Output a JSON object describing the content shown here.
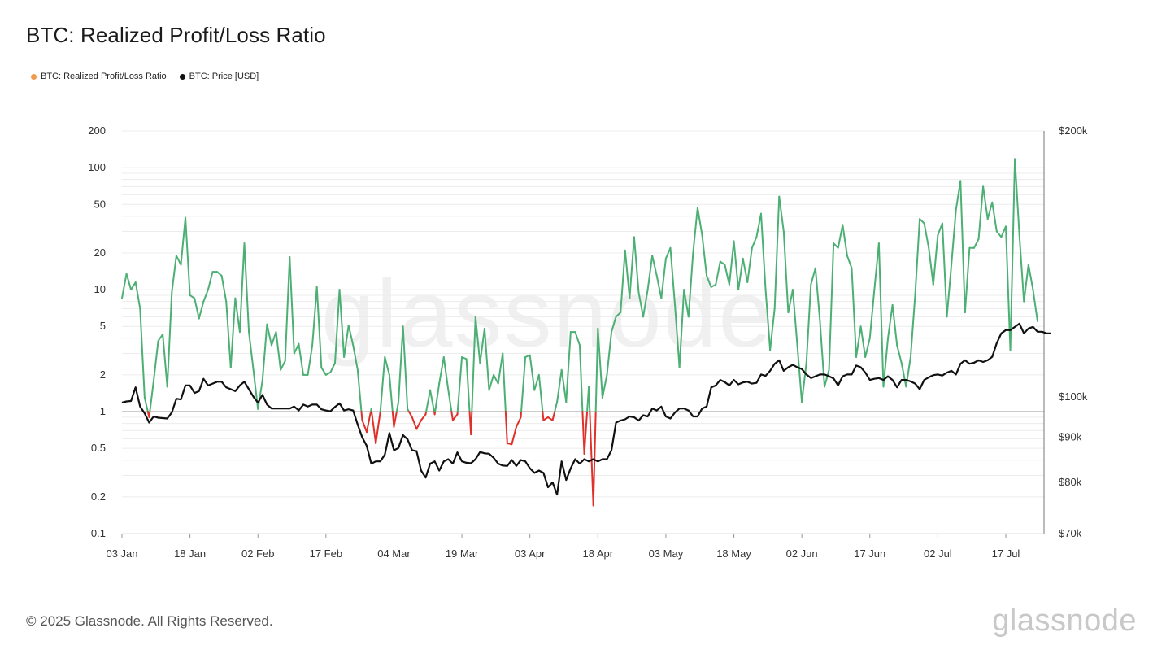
{
  "title": "BTC: Realized Profit/Loss Ratio",
  "legend": [
    {
      "label": "BTC: Realized Profit/Loss Ratio",
      "color": "#f2994a"
    },
    {
      "label": "BTC: Price [USD]",
      "color": "#111111"
    }
  ],
  "footer": "© 2025 Glassnode. All Rights Reserved.",
  "brand": "glassnode",
  "watermark": "glassnode",
  "chart_data": {
    "type": "line",
    "x_ticks": [
      "03 Jan",
      "18 Jan",
      "02 Feb",
      "17 Feb",
      "04 Mar",
      "19 Mar",
      "03 Apr",
      "18 Apr",
      "03 May",
      "18 May",
      "02 Jun",
      "17 Jun",
      "02 Jul",
      "17 Jul"
    ],
    "y_left_scale": "log",
    "y_left_range": [
      0.1,
      200
    ],
    "y_left_ticks": [
      {
        "value": 200,
        "label": "200"
      },
      {
        "value": 100,
        "label": "100"
      },
      {
        "value": 50,
        "label": "50"
      },
      {
        "value": 20,
        "label": "20"
      },
      {
        "value": 10,
        "label": "10"
      },
      {
        "value": 5,
        "label": "5"
      },
      {
        "value": 2,
        "label": "2"
      },
      {
        "value": 1,
        "label": "1"
      },
      {
        "value": 0.5,
        "label": "0.5"
      },
      {
        "value": 0.2,
        "label": "0.2"
      },
      {
        "value": 0.1,
        "label": "0.1"
      }
    ],
    "y_right_scale": "log",
    "y_right_range": [
      70000,
      200000
    ],
    "y_right_ticks": [
      {
        "value": 200000,
        "label": "$200k"
      },
      {
        "value": 100000,
        "label": "$100k"
      },
      {
        "value": 90000,
        "label": "$90k"
      },
      {
        "value": 80000,
        "label": "$80k"
      },
      {
        "value": 70000,
        "label": "$70k"
      }
    ],
    "reference_line": 1,
    "colors": {
      "profit": "#4caf73",
      "loss": "#e0302a",
      "price": "#111111",
      "grid": "#ececec",
      "ref": "#9a9a9a"
    },
    "series": [
      {
        "name": "BTC: Realized Profit/Loss Ratio",
        "values": [
          8.5,
          13.5,
          10,
          11.5,
          7,
          1.3,
          0.9,
          1.8,
          3.8,
          4.3,
          1.6,
          9.5,
          19,
          16,
          39,
          9,
          8.5,
          5.8,
          8,
          10,
          14,
          14,
          13,
          8,
          2.3,
          8.5,
          4.5,
          24,
          4.5,
          2.2,
          1.05,
          1.8,
          5.2,
          3.5,
          4.5,
          2.2,
          2.6,
          18.5,
          3,
          3.6,
          2,
          2,
          3.5,
          10.5,
          2.3,
          2,
          2.1,
          2.5,
          10,
          2.8,
          5.1,
          3.5,
          2.2,
          0.85,
          0.68,
          1.05,
          0.55,
          1.0,
          2.8,
          2,
          0.75,
          1.2,
          5,
          1.05,
          0.9,
          0.72,
          0.85,
          0.95,
          1.5,
          0.95,
          1.7,
          2.8,
          1.5,
          0.85,
          0.95,
          2.8,
          2.7,
          0.65,
          6,
          2.5,
          4.8,
          1.5,
          2,
          1.7,
          3,
          0.55,
          0.54,
          0.75,
          0.9,
          2.8,
          2.9,
          1.5,
          2,
          0.85,
          0.9,
          0.85,
          1.2,
          2.2,
          1.2,
          4.5,
          4.5,
          3.5,
          0.45,
          1.6,
          0.17,
          4.8,
          1.3,
          2,
          4.5,
          6,
          6.5,
          21,
          8.5,
          27,
          9.5,
          6,
          10,
          19,
          13,
          8.5,
          18,
          22,
          7.5,
          2.3,
          10,
          6,
          20,
          47,
          28,
          13,
          10.5,
          11,
          17,
          16,
          11,
          25,
          10,
          18,
          11.5,
          22,
          27,
          42,
          10,
          3.2,
          7,
          58,
          30,
          6.5,
          10,
          3.5,
          1.2,
          2.5,
          11,
          15,
          5.5,
          1.6,
          2.2,
          24,
          22,
          34,
          19,
          15,
          2.8,
          5,
          2.8,
          4,
          10,
          24,
          1.6,
          4,
          7.5,
          3.5,
          2.5,
          1.6,
          2.8,
          9,
          38,
          35,
          22,
          11,
          28,
          35,
          6,
          16,
          45,
          78,
          6.5,
          22,
          22,
          26,
          70,
          38,
          52,
          30,
          27,
          33,
          3.2,
          118,
          28,
          8,
          16,
          10,
          5.5
        ]
      },
      {
        "name": "BTC: Price [USD]",
        "values": [
          98500,
          98800,
          98900,
          102500,
          97500,
          95800,
          93500,
          95000,
          94700,
          94600,
          94500,
          96000,
          99500,
          99300,
          103000,
          103000,
          101000,
          101500,
          104800,
          103000,
          103500,
          104000,
          104000,
          102500,
          102000,
          101500,
          103000,
          104000,
          102000,
          100000,
          98500,
          100500,
          98000,
          97000,
          97000,
          97000,
          97000,
          97000,
          97500,
          96500,
          98000,
          97500,
          98000,
          98000,
          96800,
          96500,
          96300,
          97400,
          98300,
          96500,
          96800,
          96500,
          93000,
          90000,
          88000,
          84000,
          84500,
          84500,
          86000,
          91000,
          87000,
          87500,
          90500,
          89500,
          87000,
          86800,
          82500,
          81000,
          84000,
          84500,
          82500,
          84500,
          85000,
          84000,
          86500,
          84500,
          84200,
          84100,
          85000,
          86600,
          86300,
          86200,
          85300,
          84000,
          83600,
          83500,
          84800,
          83500,
          84800,
          84500,
          83000,
          82000,
          82500,
          82000,
          79000,
          80000,
          77500,
          84500,
          80500,
          83000,
          85000,
          84000,
          85000,
          84500,
          85000,
          84500,
          85000,
          85000,
          87000,
          93500,
          94000,
          94300,
          95000,
          94800,
          94000,
          95300,
          95000,
          97000,
          96500,
          97500,
          95000,
          94500,
          96000,
          97000,
          97000,
          96500,
          95000,
          95000,
          97000,
          97500,
          102500,
          103000,
          104500,
          103900,
          103000,
          104500,
          103300,
          103800,
          104000,
          103500,
          103700,
          106000,
          105600,
          107000,
          109000,
          110000,
          107000,
          108000,
          108700,
          108000,
          107500,
          106000,
          105000,
          105500,
          106000,
          106000,
          105500,
          104900,
          103000,
          105500,
          106000,
          106000,
          108500,
          108000,
          106500,
          104500,
          104800,
          105000,
          104500,
          105500,
          104500,
          102500,
          104500,
          104500,
          104100,
          103500,
          102000,
          104500,
          105200,
          105800,
          106000,
          105700,
          106500,
          107000,
          106000,
          109000,
          110000,
          109000,
          109300,
          110000,
          109500,
          110000,
          111000,
          115000,
          118000,
          119000,
          119000,
          120000,
          121000,
          118000,
          119500,
          120000,
          118500,
          118500,
          118000,
          118000
        ]
      }
    ]
  }
}
